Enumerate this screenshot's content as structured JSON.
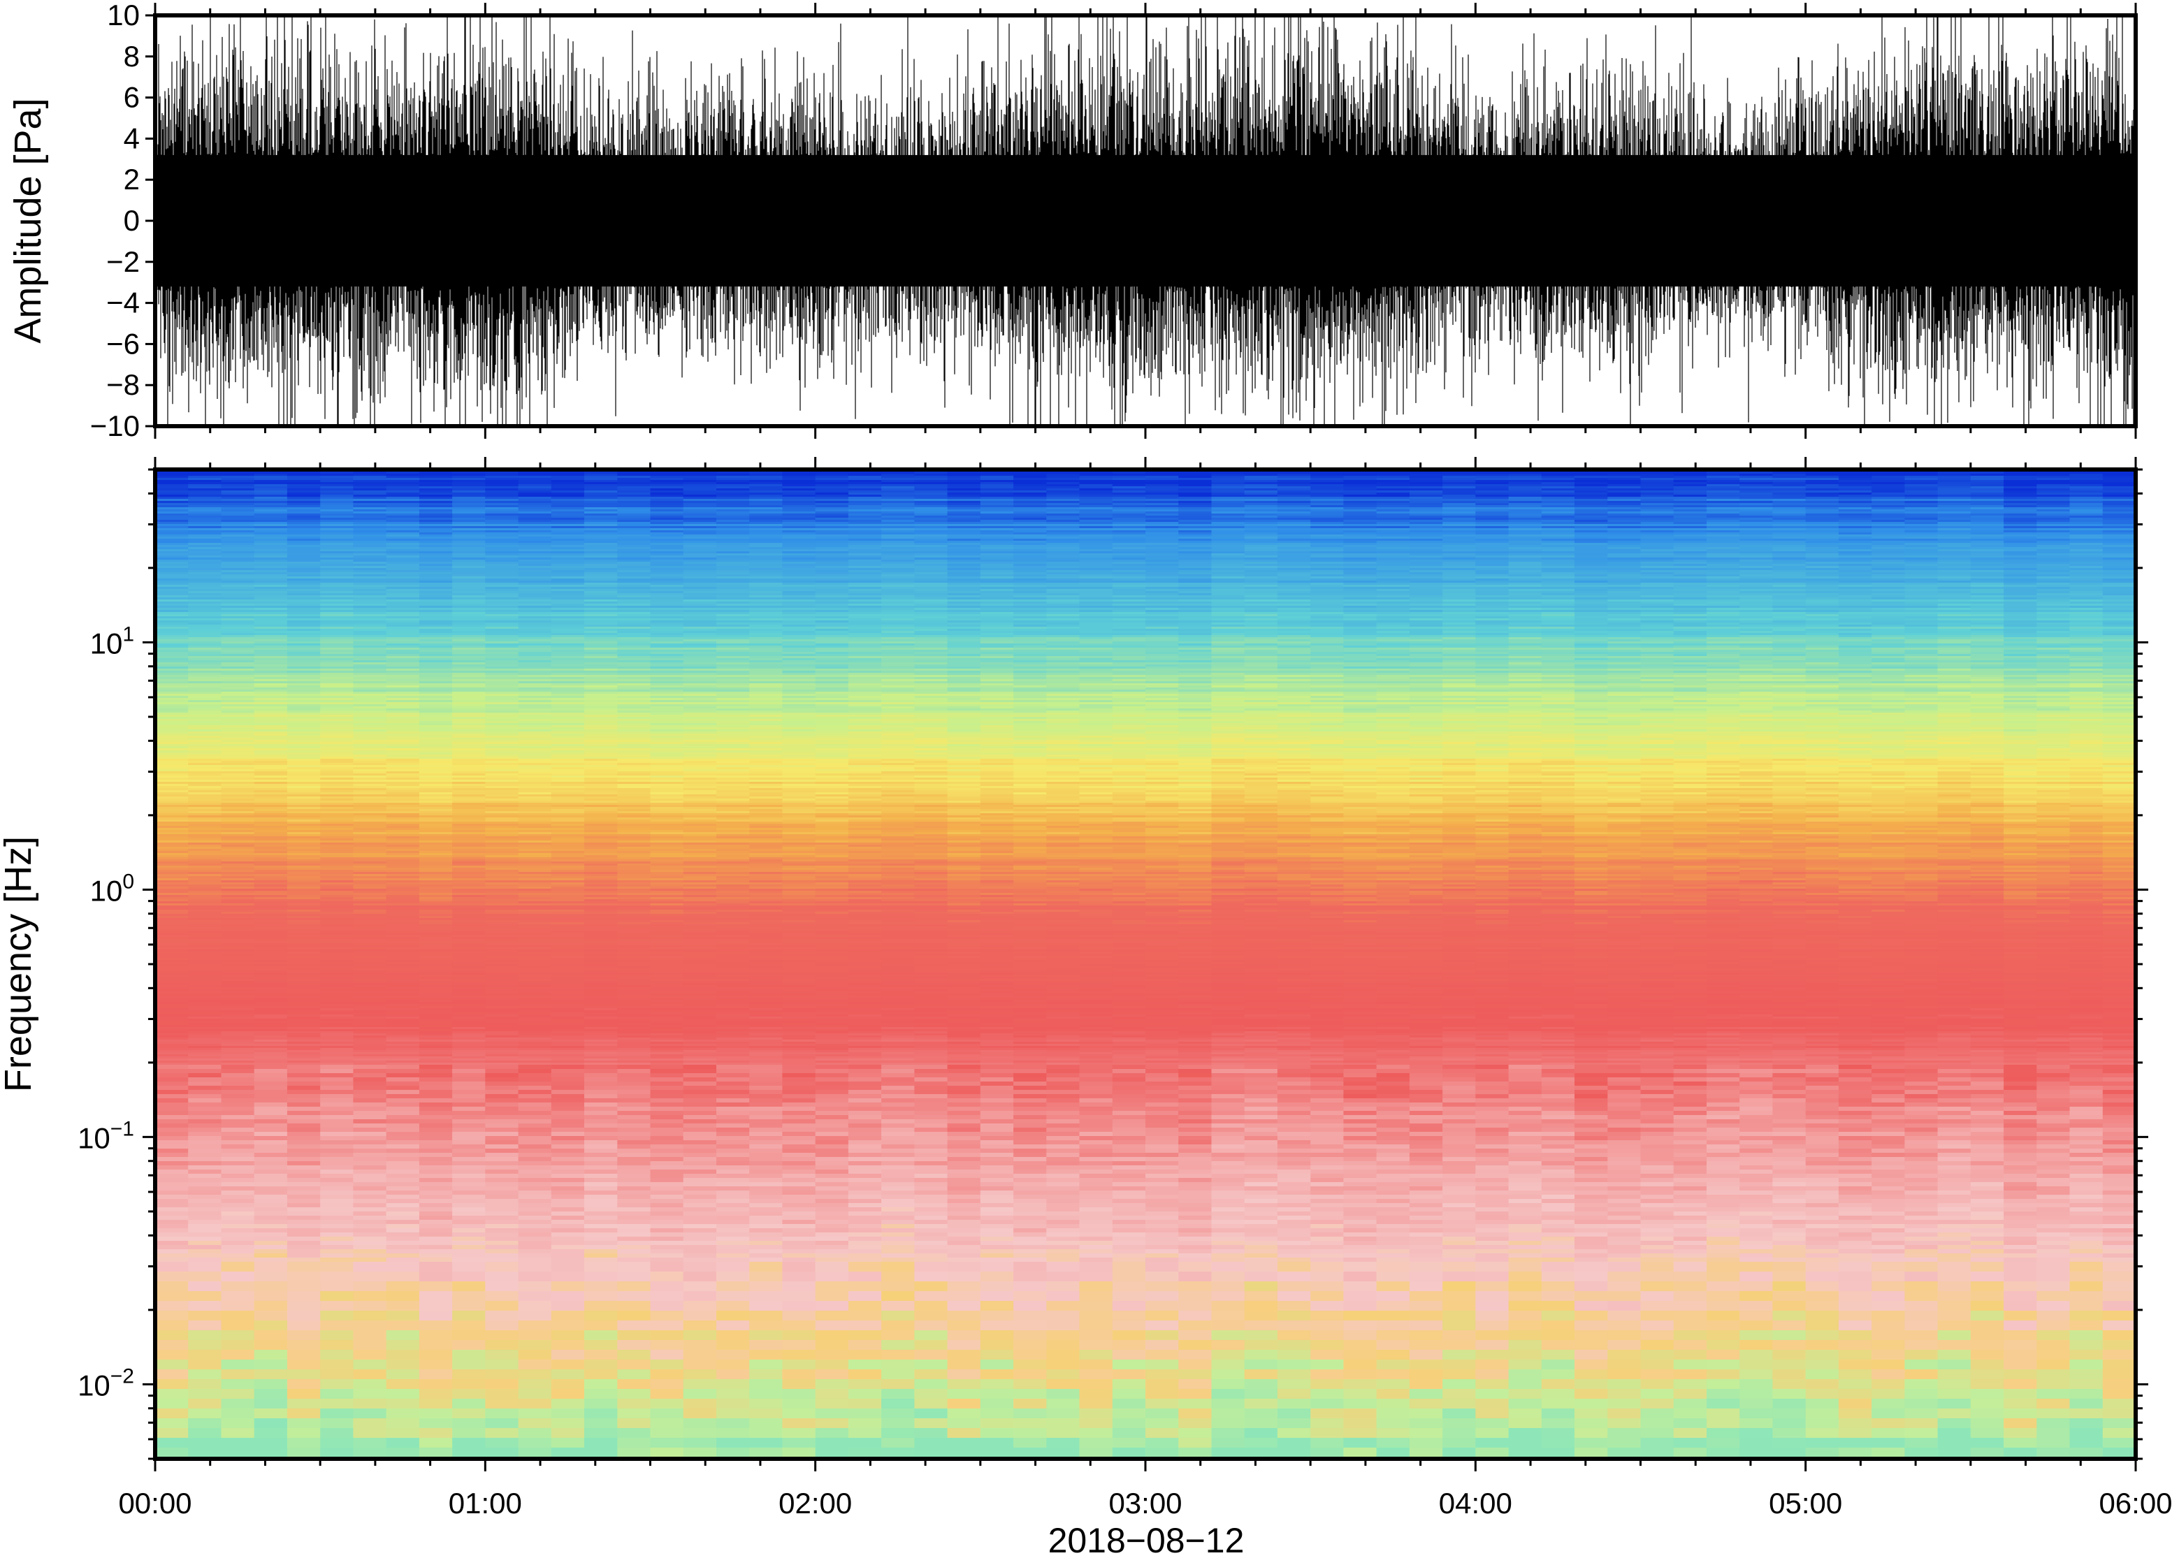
{
  "chart_data": [
    {
      "type": "line",
      "ylabel": "Amplitude [Pa]",
      "ylim": [
        -10,
        10
      ],
      "y_ticks": [
        "10",
        "8",
        "6",
        "4",
        "2",
        "0",
        "−2",
        "−4",
        "−6",
        "−8",
        "−10"
      ],
      "x_range": [
        "00:00",
        "06:00"
      ],
      "series": [
        {
          "description": "dense pressure waveform",
          "envelope_abs_typical": 4.5,
          "envelope_abs_peak": 10,
          "color": "#000000"
        }
      ],
      "grid": false
    },
    {
      "type": "heatmap",
      "ylabel": "Frequency [Hz]",
      "y_scale": "log",
      "ylim": [
        0.005,
        50
      ],
      "y_ticks": [
        {
          "base": "10",
          "exp": "1"
        },
        {
          "base": "10",
          "exp": "0"
        },
        {
          "base": "10",
          "exp": "−1"
        },
        {
          "base": "10",
          "exp": "−2"
        }
      ],
      "x_ticks": [
        "00:00",
        "01:00",
        "02:00",
        "03:00",
        "04:00",
        "05:00",
        "06:00"
      ],
      "xlabel": "2018−08−12",
      "colormap": "rainbow (blue high freq → green → yellow → orange → red → pink)",
      "colormap_stops": [
        "#0b2fd6",
        "#2f8ee8",
        "#5fd0d6",
        "#c8f08c",
        "#f6e86a",
        "#f4b04c",
        "#ef6a5e",
        "#ee5c5c",
        "#f4a6a6",
        "#f6c8c8",
        "#f7d07a",
        "#c4ee9a",
        "#8ee6b8"
      ],
      "grid": false
    }
  ]
}
